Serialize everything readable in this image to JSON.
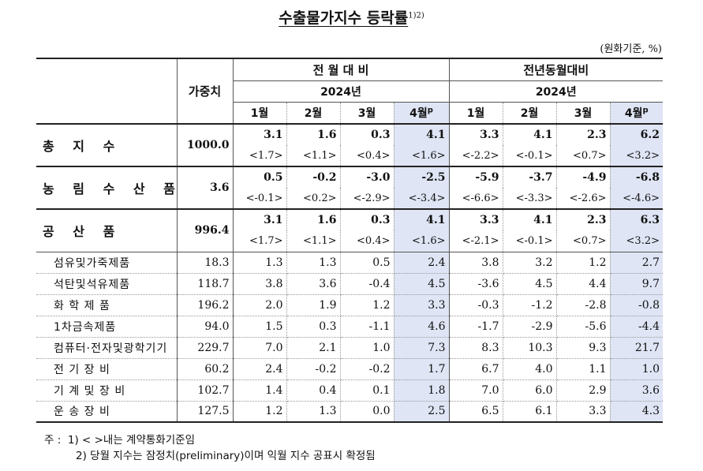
{
  "title": "수출물가지수 등락률",
  "title_sup": "1)2)",
  "unit": "(원화기준, %)",
  "header": {
    "weight": "가중치",
    "mom_group": "전 월 대 비",
    "yoy_group": "전년동월대비",
    "year": "2024년",
    "months": [
      "1월",
      "2월",
      "3월",
      "4월"
    ],
    "prelim_mark": "p"
  },
  "main_rows": [
    {
      "label": "총 지 수",
      "weight": "1000.0",
      "mom": [
        "3.1",
        "1.6",
        "0.3",
        "4.1"
      ],
      "mom_c": [
        "<1.7>",
        "<1.1>",
        "<0.4>",
        "<1.6>"
      ],
      "yoy": [
        "3.3",
        "4.1",
        "2.3",
        "6.2"
      ],
      "yoy_c": [
        "<-2.2>",
        "<-0.1>",
        "<0.7>",
        "<3.2>"
      ]
    },
    {
      "label": "농 림 수 산 품",
      "weight": "3.6",
      "mom": [
        "0.5",
        "-0.2",
        "-3.0",
        "-2.5"
      ],
      "mom_c": [
        "<-0.1>",
        "<0.2>",
        "<-2.9>",
        "<-3.4>"
      ],
      "yoy": [
        "-5.9",
        "-3.7",
        "-4.9",
        "-6.8"
      ],
      "yoy_c": [
        "<-6.6>",
        "<-3.3>",
        "<-2.6>",
        "<-4.6>"
      ]
    },
    {
      "label": "공 산 품",
      "weight": "996.4",
      "mom": [
        "3.1",
        "1.6",
        "0.3",
        "4.1"
      ],
      "mom_c": [
        "<1.7>",
        "<1.1>",
        "<0.4>",
        "<1.6>"
      ],
      "yoy": [
        "3.3",
        "4.1",
        "2.3",
        "6.3"
      ],
      "yoy_c": [
        "<-2.1>",
        "<-0.1>",
        "<0.7>",
        "<3.2>"
      ]
    }
  ],
  "sub_rows": [
    {
      "label": "섬유및가죽제품",
      "weight": "18.3",
      "mom": [
        "1.3",
        "1.3",
        "0.5",
        "2.4"
      ],
      "yoy": [
        "3.8",
        "3.2",
        "1.2",
        "2.7"
      ]
    },
    {
      "label": "석탄및석유제품",
      "weight": "118.7",
      "mom": [
        "3.8",
        "3.6",
        "-0.4",
        "4.5"
      ],
      "yoy": [
        "-3.6",
        "4.5",
        "4.4",
        "9.7"
      ]
    },
    {
      "label": "화 학 제 품",
      "weight": "196.2",
      "mom": [
        "2.0",
        "1.9",
        "1.2",
        "3.3"
      ],
      "yoy": [
        "-0.3",
        "-1.2",
        "-2.8",
        "-0.8"
      ]
    },
    {
      "label": "1차금속제품",
      "weight": "94.0",
      "mom": [
        "1.5",
        "0.3",
        "-1.1",
        "4.6"
      ],
      "yoy": [
        "-1.7",
        "-2.9",
        "-5.6",
        "-4.4"
      ]
    },
    {
      "label": "컴퓨터·전자및광학기기",
      "weight": "229.7",
      "mom": [
        "7.0",
        "2.1",
        "1.0",
        "7.3"
      ],
      "yoy": [
        "8.3",
        "10.3",
        "9.3",
        "21.7"
      ]
    },
    {
      "label": "전 기 장 비",
      "weight": "60.2",
      "mom": [
        "2.4",
        "-0.2",
        "-0.2",
        "1.7"
      ],
      "yoy": [
        "6.7",
        "4.0",
        "1.1",
        "1.0"
      ]
    },
    {
      "label": "기 계 및 장 비",
      "weight": "102.7",
      "mom": [
        "1.4",
        "0.4",
        "0.1",
        "1.8"
      ],
      "yoy": [
        "7.0",
        "6.0",
        "2.9",
        "3.6"
      ]
    },
    {
      "label": "운 송 장 비",
      "weight": "127.5",
      "mom": [
        "1.2",
        "1.3",
        "0.0",
        "2.5"
      ],
      "yoy": [
        "6.5",
        "6.1",
        "3.3",
        "4.3"
      ]
    }
  ],
  "notes": {
    "prefix": "주 :",
    "note1": "1) < >내는 계약통화기준임",
    "note2": "2) 당월 지수는 잠정치(preliminary)이며 익월 지수 공표시 확정됨"
  },
  "colors": {
    "highlight": "#dfe5f5"
  }
}
